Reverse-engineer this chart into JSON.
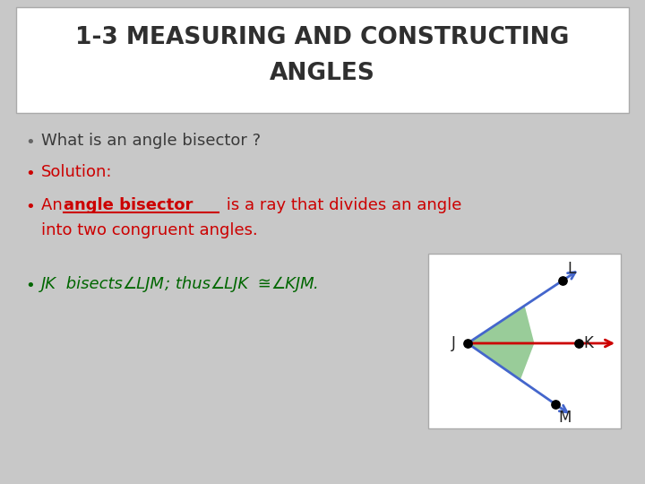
{
  "title_line1": "1-3 MEASURING AND CONSTRUCTING",
  "title_line2": "ANGLES",
  "title_color": "#2F2F2F",
  "title_bg_color": "#FFFFFF",
  "slide_bg_color": "#C8C8C8",
  "bullet1": "What is an angle bisector ?",
  "bullet2": "Solution:",
  "bullet_color_1": "#3A3A3A",
  "bullet_color_2": "#CC0000",
  "bullet_color_3": "#CC0000",
  "bullet_color_4": "#006600",
  "diagram_box_color": "#FFFFFF",
  "ray_color_upper": "#4466CC",
  "ray_color_mid": "#CC0000",
  "ray_color_lower": "#4466CC",
  "dot_color": "#000000"
}
